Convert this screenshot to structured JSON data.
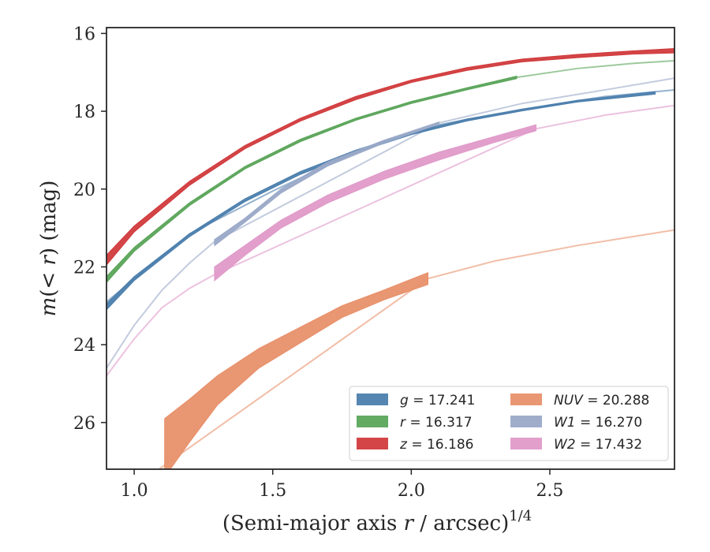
{
  "chart_data": {
    "type": "line",
    "title": "",
    "xlabel": "(Semi-major axis r / arcsec)",
    "xlabel_superscript": "1/4",
    "ylabel": "m(< r) (mag)",
    "xlim": [
      0.9,
      2.95
    ],
    "ylim": [
      27.2,
      15.85
    ],
    "y_inverted": true,
    "x_ticks": [
      "1.0",
      "1.5",
      "2.0",
      "2.5"
    ],
    "x_tick_values": [
      1.0,
      1.5,
      2.0,
      2.5
    ],
    "y_ticks": [
      "16",
      "18",
      "20",
      "22",
      "24",
      "26"
    ],
    "y_tick_values": [
      16,
      18,
      20,
      22,
      24,
      26
    ],
    "grid": false,
    "legend_position": "lower-right",
    "series": [
      {
        "name": "g = 17.241",
        "legend_var": "g",
        "legend_value": "17.241",
        "color": "#4c7fad",
        "band_x": [
          0.9,
          1.0,
          1.2,
          1.4,
          1.6,
          1.8,
          2.0,
          2.2,
          2.4,
          2.6,
          2.88
        ],
        "band_upper": [
          22.95,
          22.25,
          21.15,
          20.25,
          19.55,
          19.0,
          18.55,
          18.2,
          17.95,
          17.72,
          17.5
        ],
        "band_lower": [
          23.1,
          22.35,
          21.22,
          20.32,
          19.62,
          19.06,
          18.6,
          18.25,
          17.99,
          17.76,
          17.56
        ],
        "model_x": [
          0.9,
          1.2,
          1.5,
          1.8,
          2.1,
          2.4,
          2.7,
          2.95
        ],
        "model_y": [
          22.9,
          21.15,
          20.05,
          19.05,
          18.35,
          17.95,
          17.62,
          17.45
        ]
      },
      {
        "name": "r = 16.317",
        "legend_var": "r",
        "legend_value": "16.317",
        "color": "#5ba55a",
        "band_x": [
          0.9,
          1.0,
          1.2,
          1.4,
          1.6,
          1.8,
          2.0,
          2.2,
          2.38
        ],
        "band_upper": [
          22.25,
          21.5,
          20.35,
          19.42,
          18.72,
          18.18,
          17.75,
          17.4,
          17.1
        ],
        "band_lower": [
          22.4,
          21.6,
          20.42,
          19.48,
          18.78,
          18.23,
          17.8,
          17.45,
          17.16
        ],
        "model_x": [
          2.38,
          2.6,
          2.8,
          2.95
        ],
        "model_y": [
          17.13,
          16.9,
          16.77,
          16.7
        ]
      },
      {
        "name": "z = 16.186",
        "legend_var": "z",
        "legend_value": "16.186",
        "color": "#d13b3d",
        "band_x": [
          0.9,
          1.0,
          1.2,
          1.4,
          1.6,
          1.8,
          2.0,
          2.2,
          2.4,
          2.6,
          2.8,
          2.95
        ],
        "band_upper": [
          21.7,
          20.95,
          19.8,
          18.88,
          18.18,
          17.62,
          17.2,
          16.88,
          16.66,
          16.54,
          16.45,
          16.39
        ],
        "band_lower": [
          21.95,
          21.1,
          19.9,
          18.96,
          18.25,
          17.7,
          17.26,
          16.95,
          16.73,
          16.62,
          16.53,
          16.5
        ]
      },
      {
        "name": "NUV = 20.288",
        "legend_var": "NUV",
        "legend_value": "20.288",
        "color": "#e8916b",
        "band_x": [
          1.11,
          1.2,
          1.3,
          1.45,
          1.6,
          1.75,
          1.9,
          2.06
        ],
        "band_upper": [
          25.9,
          25.4,
          24.8,
          24.1,
          23.55,
          23.0,
          22.6,
          22.15
        ],
        "band_lower": [
          27.4,
          26.5,
          25.55,
          24.6,
          23.95,
          23.3,
          22.85,
          22.45
        ],
        "model_x": [
          0.9,
          1.05,
          2.06,
          2.3,
          2.6,
          2.95
        ],
        "model_y": [
          28.1,
          27.4,
          22.3,
          21.85,
          21.45,
          21.05
        ]
      },
      {
        "name": "W1 = 16.270",
        "legend_var": "W1",
        "legend_value": "16.270",
        "color": "#9aa9c8",
        "band_x": [
          1.29,
          1.4,
          1.53,
          1.7,
          1.9,
          2.1
        ],
        "band_upper": [
          21.3,
          20.75,
          20.0,
          19.3,
          18.75,
          18.28
        ],
        "band_lower": [
          21.45,
          20.85,
          20.1,
          19.4,
          18.82,
          18.33
        ],
        "model_x": [
          0.9,
          1.0,
          1.1,
          1.2,
          1.29,
          2.1,
          2.4,
          2.7,
          2.95
        ],
        "model_y": [
          24.6,
          23.5,
          22.6,
          21.9,
          21.35,
          18.3,
          17.8,
          17.45,
          17.15
        ]
      },
      {
        "name": "W2 = 17.432",
        "legend_var": "W2",
        "legend_value": "17.432",
        "color": "#e09ac9",
        "band_x": [
          1.29,
          1.4,
          1.53,
          1.7,
          1.9,
          2.1,
          2.3,
          2.45
        ],
        "band_upper": [
          22.0,
          21.45,
          20.8,
          20.15,
          19.55,
          19.05,
          18.65,
          18.35
        ],
        "band_lower": [
          22.35,
          21.7,
          21.0,
          20.35,
          19.75,
          19.25,
          18.8,
          18.5
        ],
        "model_x": [
          0.9,
          1.0,
          1.1,
          1.2,
          1.29,
          2.45,
          2.7,
          2.95
        ],
        "model_y": [
          24.8,
          23.85,
          23.05,
          22.55,
          22.2,
          18.45,
          18.1,
          17.85
        ]
      }
    ]
  }
}
